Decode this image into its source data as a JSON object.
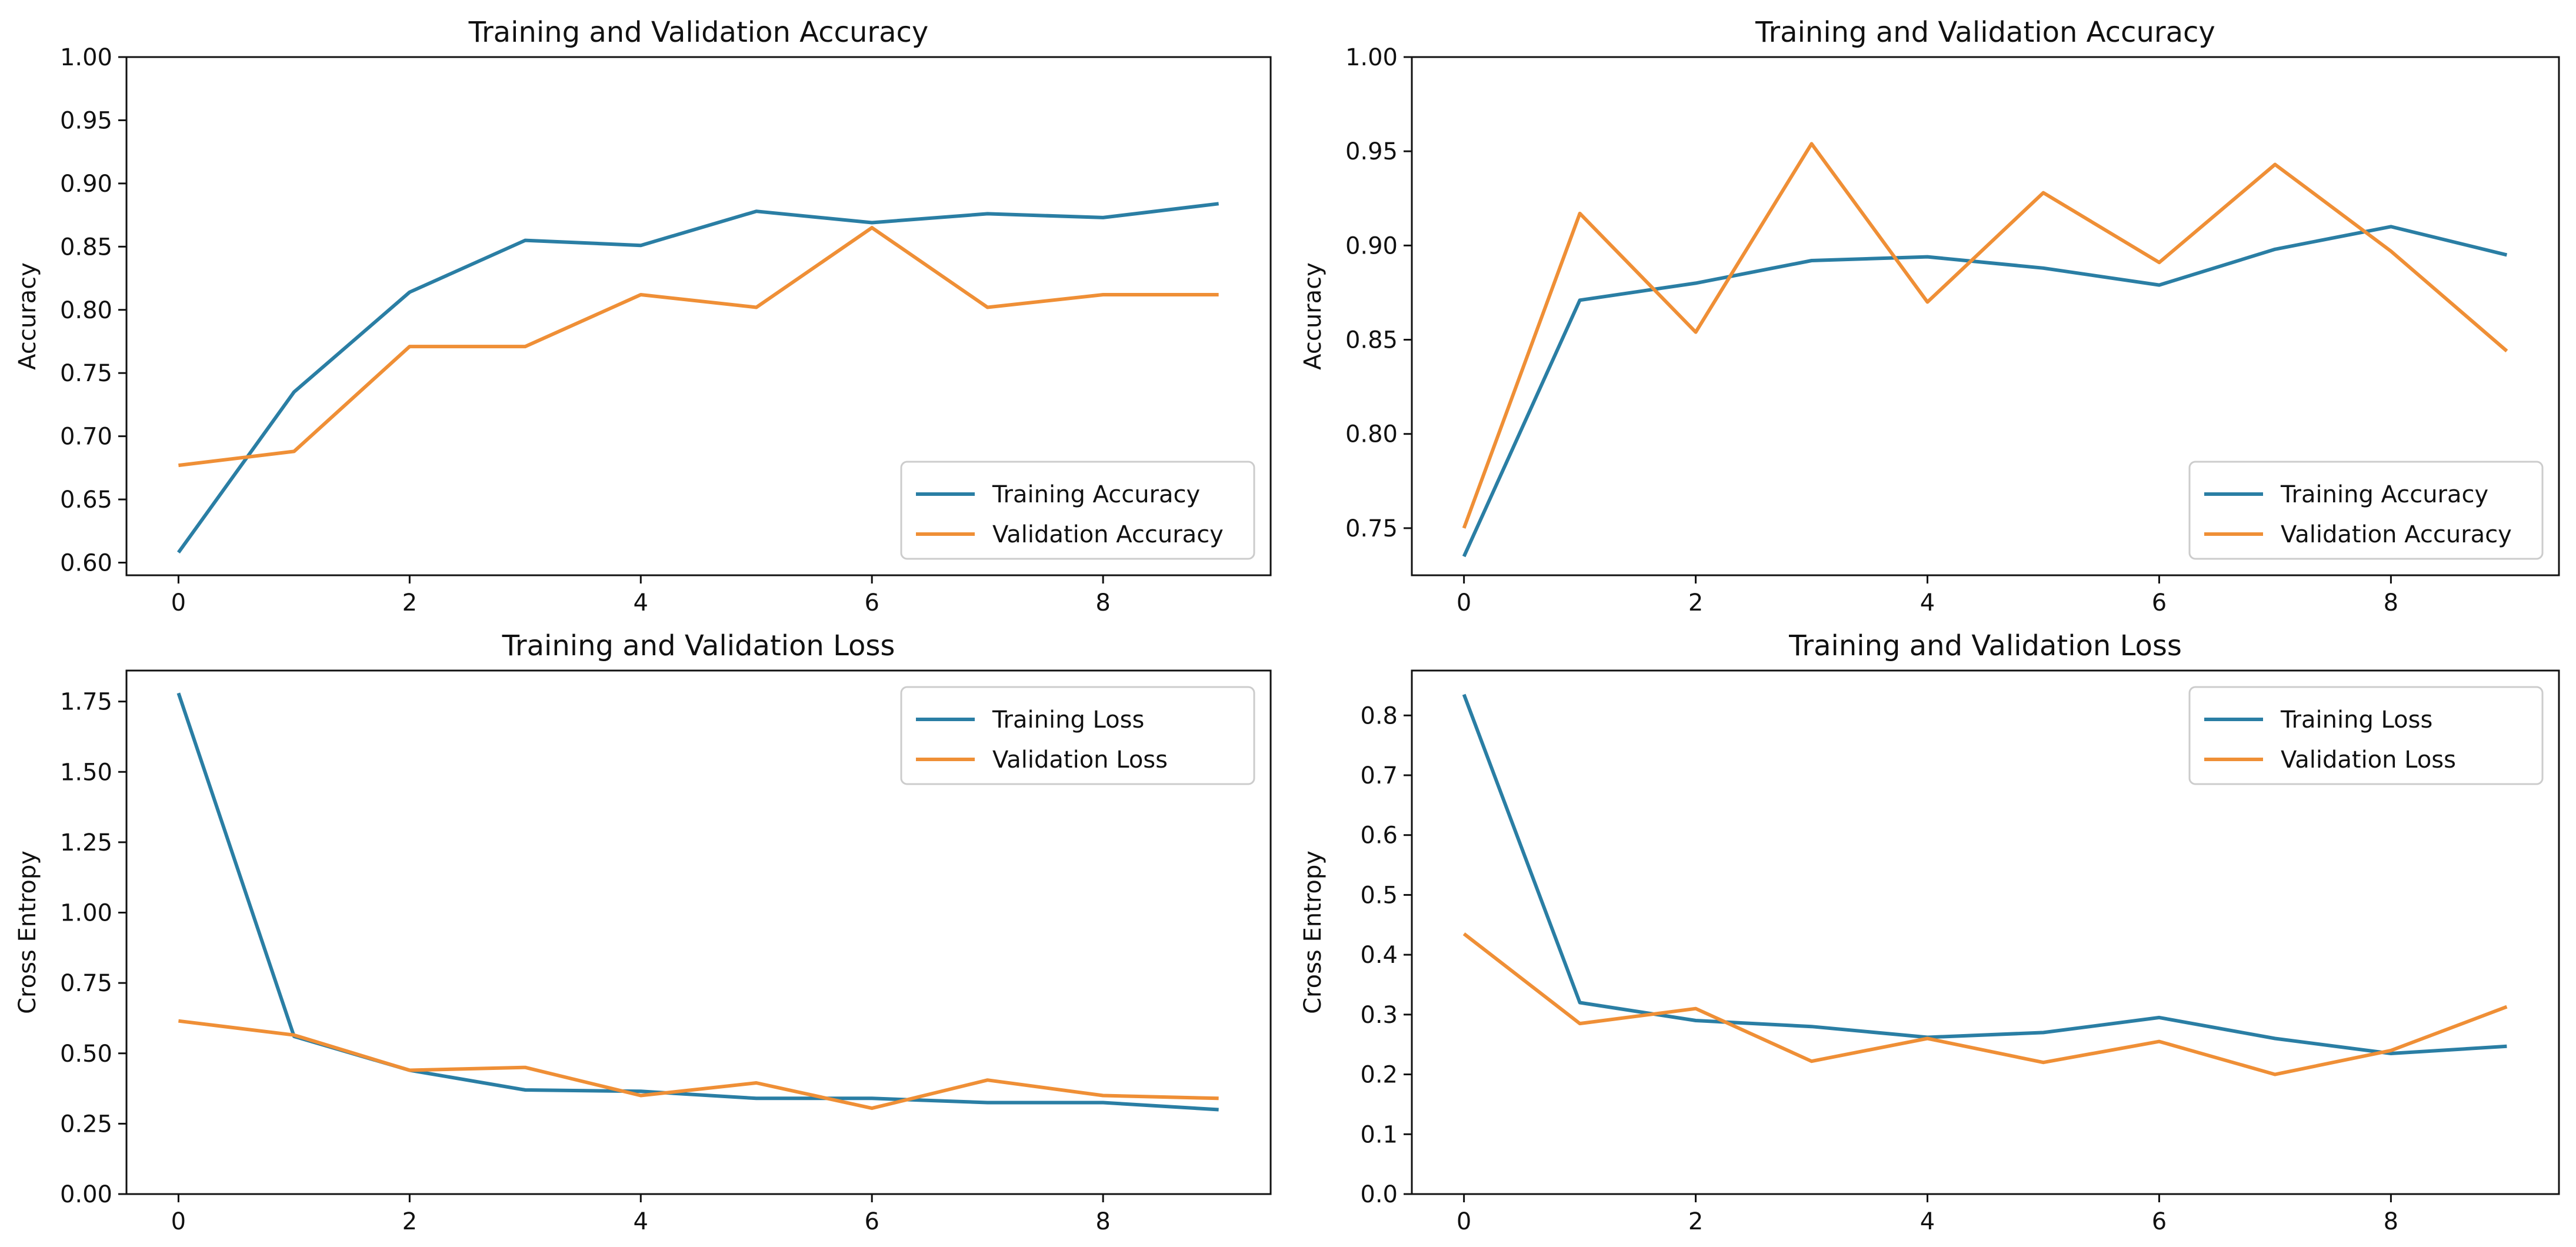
{
  "colors": {
    "training": "#2a7ea4",
    "validation": "#ef8f36",
    "axis": "#111111",
    "legend_border": "#cccccc"
  },
  "chart_data": [
    {
      "type": "line",
      "title": "Training and Validation Accuracy",
      "xlabel": "",
      "ylabel": "Accuracy",
      "xlim": [
        -0.45,
        9.45
      ],
      "ylim": [
        0.59,
        1.0
      ],
      "xticks": [
        0,
        2,
        4,
        6,
        8
      ],
      "xtick_labels": [
        "0",
        "2",
        "4",
        "6",
        "8"
      ],
      "yticks": [
        0.6,
        0.65,
        0.7,
        0.75,
        0.8,
        0.85,
        0.9,
        0.95,
        1.0
      ],
      "ytick_labels": [
        "0.60",
        "0.65",
        "0.70",
        "0.75",
        "0.80",
        "0.85",
        "0.90",
        "0.95",
        "1.00"
      ],
      "grid": false,
      "legend_position": "bottom-right",
      "x": [
        0,
        1,
        2,
        3,
        4,
        5,
        6,
        7,
        8,
        9
      ],
      "series": [
        {
          "name": "Training Accuracy",
          "color_key": "training",
          "values": [
            0.608,
            0.735,
            0.814,
            0.855,
            0.851,
            0.878,
            0.869,
            0.876,
            0.873,
            0.884
          ]
        },
        {
          "name": "Validation Accuracy",
          "color_key": "validation",
          "values": [
            0.677,
            0.688,
            0.771,
            0.771,
            0.812,
            0.802,
            0.865,
            0.802,
            0.812,
            0.812
          ]
        }
      ]
    },
    {
      "type": "line",
      "title": "Training and Validation Accuracy",
      "xlabel": "",
      "ylabel": "Accuracy",
      "xlim": [
        -0.45,
        9.45
      ],
      "ylim": [
        0.725,
        1.0
      ],
      "xticks": [
        0,
        2,
        4,
        6,
        8
      ],
      "xtick_labels": [
        "0",
        "2",
        "4",
        "6",
        "8"
      ],
      "yticks": [
        0.75,
        0.8,
        0.85,
        0.9,
        0.95,
        1.0
      ],
      "ytick_labels": [
        "0.75",
        "0.80",
        "0.85",
        "0.90",
        "0.95",
        "1.00"
      ],
      "grid": false,
      "legend_position": "bottom-right",
      "x": [
        0,
        1,
        2,
        3,
        4,
        5,
        6,
        7,
        8,
        9
      ],
      "series": [
        {
          "name": "Training Accuracy",
          "color_key": "training",
          "values": [
            0.735,
            0.871,
            0.88,
            0.892,
            0.894,
            0.888,
            0.879,
            0.898,
            0.91,
            0.895
          ]
        },
        {
          "name": "Validation Accuracy",
          "color_key": "validation",
          "values": [
            0.75,
            0.917,
            0.854,
            0.954,
            0.87,
            0.928,
            0.891,
            0.943,
            0.897,
            0.844
          ]
        }
      ]
    },
    {
      "type": "line",
      "title": "Training and Validation Loss",
      "xlabel": "",
      "ylabel": "Cross Entropy",
      "xlim": [
        -0.45,
        9.45
      ],
      "ylim": [
        0.0,
        1.86
      ],
      "xticks": [
        0,
        2,
        4,
        6,
        8
      ],
      "xtick_labels": [
        "0",
        "2",
        "4",
        "6",
        "8"
      ],
      "yticks": [
        0.0,
        0.25,
        0.5,
        0.75,
        1.0,
        1.25,
        1.5,
        1.75
      ],
      "ytick_labels": [
        "0.00",
        "0.25",
        "0.50",
        "0.75",
        "1.00",
        "1.25",
        "1.50",
        "1.75"
      ],
      "grid": false,
      "legend_position": "top-right",
      "x": [
        0,
        1,
        2,
        3,
        4,
        5,
        6,
        7,
        8,
        9
      ],
      "series": [
        {
          "name": "Training Loss",
          "color_key": "training",
          "values": [
            1.78,
            0.56,
            0.44,
            0.37,
            0.365,
            0.34,
            0.34,
            0.325,
            0.325,
            0.3
          ]
        },
        {
          "name": "Validation Loss",
          "color_key": "validation",
          "values": [
            0.615,
            0.565,
            0.44,
            0.45,
            0.35,
            0.395,
            0.305,
            0.405,
            0.35,
            0.34
          ]
        }
      ]
    },
    {
      "type": "line",
      "title": "Training and Validation Loss",
      "xlabel": "",
      "ylabel": "Cross Entropy",
      "xlim": [
        -0.45,
        9.45
      ],
      "ylim": [
        0.0,
        0.875
      ],
      "xticks": [
        0,
        2,
        4,
        6,
        8
      ],
      "xtick_labels": [
        "0",
        "2",
        "4",
        "6",
        "8"
      ],
      "yticks": [
        0.0,
        0.1,
        0.2,
        0.3,
        0.4,
        0.5,
        0.6,
        0.7,
        0.8
      ],
      "ytick_labels": [
        "0.0",
        "0.1",
        "0.2",
        "0.3",
        "0.4",
        "0.5",
        "0.6",
        "0.7",
        "0.8"
      ],
      "grid": false,
      "legend_position": "top-right",
      "x": [
        0,
        1,
        2,
        3,
        4,
        5,
        6,
        7,
        8,
        9
      ],
      "series": [
        {
          "name": "Training Loss",
          "color_key": "training",
          "values": [
            0.835,
            0.32,
            0.29,
            0.28,
            0.262,
            0.27,
            0.295,
            0.26,
            0.235,
            0.247
          ]
        },
        {
          "name": "Validation Loss",
          "color_key": "validation",
          "values": [
            0.435,
            0.285,
            0.31,
            0.222,
            0.26,
            0.22,
            0.255,
            0.2,
            0.24,
            0.313
          ]
        }
      ]
    }
  ]
}
